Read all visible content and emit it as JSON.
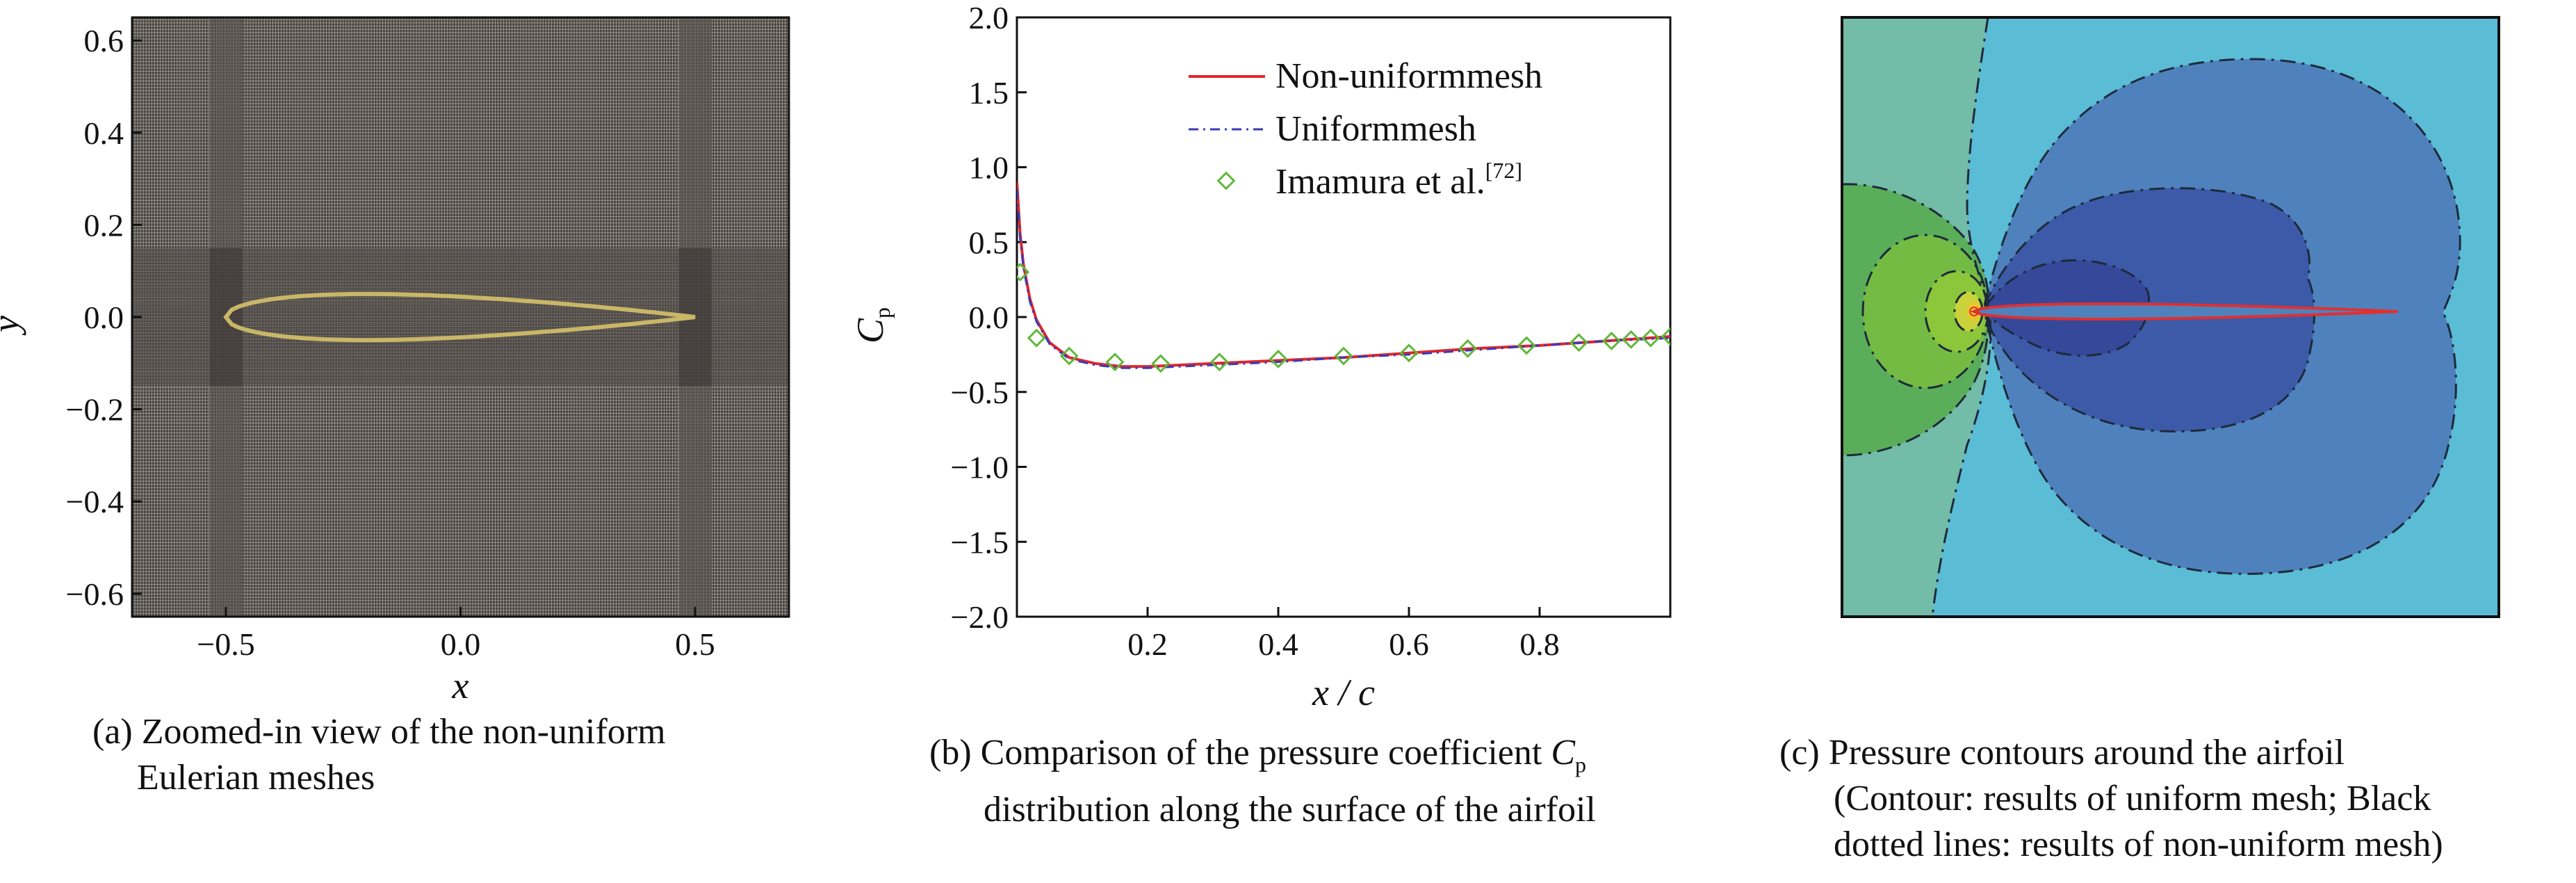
{
  "chart_data": [
    {
      "type": "mesh",
      "panel": "a",
      "xlabel": "x",
      "ylabel": "y",
      "xlim": [
        -0.7,
        0.7
      ],
      "ylim": [
        -0.65,
        0.65
      ],
      "xticks": [
        "−0.5",
        "0.0",
        "0.5"
      ],
      "xtick_values": [
        -0.5,
        0.0,
        0.5
      ],
      "yticks": [
        "0.6",
        "0.4",
        "0.2",
        "0.0",
        "−0.2",
        "−0.4",
        "−0.6"
      ],
      "ytick_values": [
        0.6,
        0.4,
        0.2,
        0.0,
        -0.2,
        -0.4,
        -0.6
      ],
      "airfoil": {
        "leading_edge": -0.5,
        "trailing_edge": 0.5,
        "max_half_thickness": 0.06
      },
      "refinement_x": [
        -0.5,
        0.5
      ],
      "refinement_y": [
        -0.15,
        0.15
      ],
      "caption_prefix": "(a)",
      "caption_line1": "Zoomed-in view of the non-uniform",
      "caption_line2": "Eulerian meshes"
    },
    {
      "type": "line",
      "panel": "b",
      "xlabel": "x / c",
      "ylabel_main": "C",
      "ylabel_sub": "p",
      "xlim": [
        0,
        1
      ],
      "ylim": [
        -2.0,
        2.0
      ],
      "xticks": [
        "0.2",
        "0.4",
        "0.6",
        "0.8"
      ],
      "xtick_values": [
        0.2,
        0.4,
        0.6,
        0.8
      ],
      "yticks": [
        "2.0",
        "1.5",
        "1.0",
        "0.5",
        "0.0",
        "−0.5",
        "−1.0",
        "−1.5",
        "−2.0"
      ],
      "ytick_values": [
        2.0,
        1.5,
        1.0,
        0.5,
        0.0,
        -0.5,
        -1.0,
        -1.5,
        -2.0
      ],
      "legend_position": "top-right",
      "series": [
        {
          "name": "Non-uniformmesh",
          "style": "solid",
          "color": "#e0262b",
          "x": [
            0.0,
            0.005,
            0.01,
            0.02,
            0.03,
            0.05,
            0.08,
            0.12,
            0.16,
            0.2,
            0.25,
            0.3,
            0.4,
            0.5,
            0.6,
            0.7,
            0.8,
            0.9,
            1.0
          ],
          "y": [
            0.9,
            0.55,
            0.35,
            0.12,
            -0.02,
            -0.17,
            -0.27,
            -0.31,
            -0.33,
            -0.33,
            -0.32,
            -0.31,
            -0.29,
            -0.27,
            -0.24,
            -0.21,
            -0.19,
            -0.16,
            -0.13
          ]
        },
        {
          "name": "Uniformmesh",
          "style": "dashdot",
          "color": "#3a3ab8",
          "x": [
            0.0,
            0.005,
            0.01,
            0.02,
            0.03,
            0.05,
            0.08,
            0.12,
            0.16,
            0.2,
            0.25,
            0.3,
            0.4,
            0.5,
            0.6,
            0.7,
            0.8,
            0.9,
            1.0
          ],
          "y": [
            0.85,
            0.52,
            0.33,
            0.1,
            -0.03,
            -0.18,
            -0.28,
            -0.32,
            -0.34,
            -0.34,
            -0.33,
            -0.32,
            -0.3,
            -0.27,
            -0.25,
            -0.22,
            -0.19,
            -0.16,
            -0.14
          ]
        },
        {
          "name": "Imamura et al.",
          "name_sup": "[72]",
          "style": "marker",
          "color": "#5fb83a",
          "x": [
            0.005,
            0.03,
            0.08,
            0.15,
            0.22,
            0.31,
            0.4,
            0.5,
            0.6,
            0.69,
            0.78,
            0.86,
            0.91,
            0.94,
            0.97,
            1.0
          ],
          "y": [
            0.3,
            -0.14,
            -0.26,
            -0.3,
            -0.31,
            -0.3,
            -0.28,
            -0.26,
            -0.24,
            -0.21,
            -0.19,
            -0.17,
            -0.16,
            -0.15,
            -0.14,
            -0.13
          ]
        }
      ],
      "caption_prefix": "(b)",
      "caption_line1a": "Comparison of the pressure coefficient ",
      "caption_line1b": "C",
      "caption_line1c": "p",
      "caption_line2": "distribution along the surface of the airfoil"
    },
    {
      "type": "contour",
      "panel": "c",
      "colors": {
        "far_field": "#5bbcd6",
        "upstream": "#72bca8",
        "stagnation_outer": "#5aae5a",
        "stagnation_mid": "#74bb44",
        "stagnation_core": "#e8c82a",
        "suction_1": "#4f82bd",
        "suction_2": "#3c5aa8",
        "suction_3": "#36489a",
        "airfoil_line": "#e03030"
      },
      "caption_prefix": "(c)",
      "caption_line1": "Pressure contours around the airfoil",
      "caption_line2": "(Contour: results of uniform mesh; Black",
      "caption_line3": "dotted lines: results of non-uniform mesh)"
    }
  ]
}
